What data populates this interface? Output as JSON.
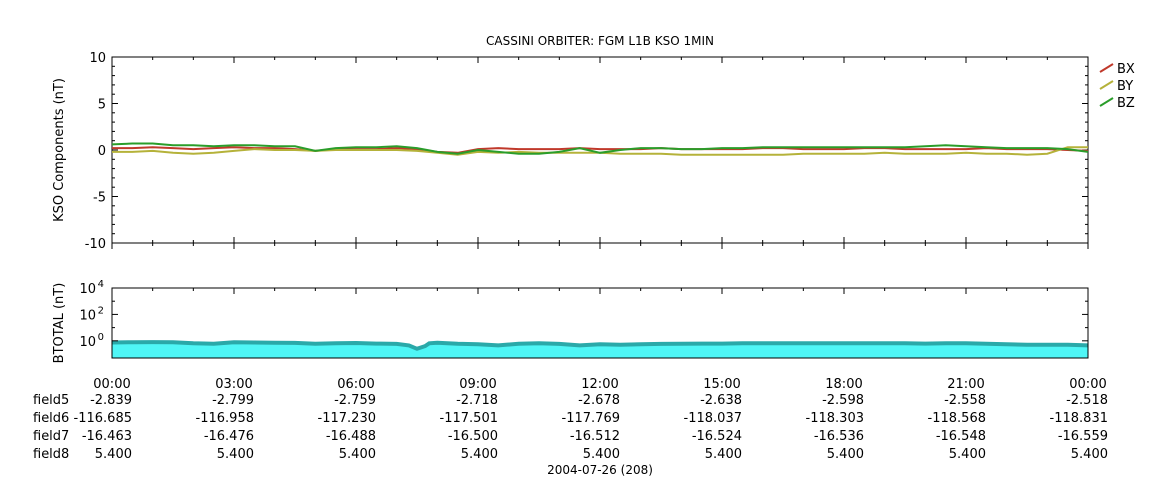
{
  "title": "CASSINI ORBITER: FGM L1B KSO 1MIN",
  "colors": {
    "bx": "#c0392b",
    "by": "#b5b23a",
    "bz": "#2a9d2a",
    "btotal_fill": "#4ff6f6",
    "btotal_line": "#2aa9a9",
    "axis": "#000000"
  },
  "chart_data": [
    {
      "type": "line",
      "ylabel": "KSO Components (nT)",
      "ylim": [
        -10,
        10
      ],
      "yticks": [
        {
          "value": 10,
          "label": "10"
        },
        {
          "value": 5,
          "label": "5"
        },
        {
          "value": 0,
          "label": "0"
        },
        {
          "value": -5,
          "label": "-5"
        },
        {
          "value": -10,
          "label": "-10"
        }
      ],
      "x_hours": [
        0,
        0.5,
        1,
        1.5,
        2,
        2.5,
        3,
        3.5,
        4,
        4.5,
        5,
        5.5,
        6,
        6.5,
        7,
        7.5,
        8,
        8.5,
        9,
        9.5,
        10,
        10.5,
        11,
        11.5,
        12,
        12.5,
        13,
        13.5,
        14,
        14.5,
        15,
        15.5,
        16,
        16.5,
        17,
        17.5,
        18,
        18.5,
        19,
        19.5,
        20,
        20.5,
        21,
        21.5,
        22,
        22.5,
        23,
        23.5,
        24
      ],
      "series": [
        {
          "name": "BX",
          "color_key": "bx",
          "values": [
            0.2,
            0.2,
            0.3,
            0.2,
            0.1,
            0.2,
            0.3,
            0.2,
            0.2,
            0.1,
            -0.1,
            0.1,
            0.1,
            0.1,
            0.2,
            0.1,
            -0.2,
            -0.3,
            0.1,
            0.2,
            0.1,
            0.1,
            0.1,
            0.2,
            0.1,
            0.1,
            0.1,
            0.2,
            0.1,
            0.1,
            0.1,
            0.1,
            0.2,
            0.2,
            0.1,
            0.1,
            0.1,
            0.2,
            0.2,
            0.1,
            0.1,
            0.1,
            0.1,
            0.2,
            0.1,
            0.1,
            0.1,
            0.0,
            -0.1
          ]
        },
        {
          "name": "BY",
          "color_key": "by",
          "values": [
            -0.2,
            -0.2,
            -0.1,
            -0.3,
            -0.4,
            -0.3,
            -0.1,
            0.1,
            0.0,
            0.0,
            -0.1,
            0.0,
            0.0,
            0.0,
            0.0,
            -0.1,
            -0.3,
            -0.5,
            -0.2,
            -0.3,
            -0.2,
            -0.3,
            -0.3,
            -0.3,
            -0.3,
            -0.4,
            -0.4,
            -0.4,
            -0.5,
            -0.5,
            -0.5,
            -0.5,
            -0.5,
            -0.5,
            -0.4,
            -0.4,
            -0.4,
            -0.4,
            -0.3,
            -0.4,
            -0.4,
            -0.4,
            -0.3,
            -0.4,
            -0.4,
            -0.5,
            -0.4,
            0.3,
            0.3
          ]
        },
        {
          "name": "BZ",
          "color_key": "bz",
          "values": [
            0.6,
            0.7,
            0.7,
            0.5,
            0.5,
            0.4,
            0.5,
            0.5,
            0.4,
            0.4,
            -0.1,
            0.2,
            0.3,
            0.3,
            0.4,
            0.2,
            -0.2,
            -0.4,
            0.0,
            -0.2,
            -0.4,
            -0.4,
            -0.2,
            0.2,
            -0.3,
            0.0,
            0.2,
            0.2,
            0.1,
            0.1,
            0.2,
            0.2,
            0.3,
            0.3,
            0.3,
            0.3,
            0.3,
            0.3,
            0.3,
            0.3,
            0.4,
            0.5,
            0.4,
            0.3,
            0.2,
            0.2,
            0.2,
            0.1,
            -0.2
          ]
        }
      ],
      "legend": [
        "BX",
        "BY",
        "BZ"
      ],
      "legend_position": "right"
    },
    {
      "type": "area",
      "ylabel": "BTOTAL (nT)",
      "yscale": "log",
      "ylim": [
        0.05,
        10000
      ],
      "yticks": [
        {
          "value": 1,
          "base": "10",
          "exp": "0"
        },
        {
          "value": 100,
          "base": "10",
          "exp": "2"
        },
        {
          "value": 10000,
          "base": "10",
          "exp": "4"
        }
      ],
      "x_hours": [
        0,
        0.5,
        1,
        1.5,
        2,
        2.5,
        3,
        3.5,
        4,
        4.5,
        5,
        5.5,
        6,
        6.5,
        7,
        7.3,
        7.5,
        7.7,
        7.8,
        8,
        8.5,
        9,
        9.5,
        10,
        10.5,
        11,
        11.5,
        12,
        12.5,
        13,
        13.5,
        14,
        14.5,
        15,
        15.5,
        16,
        16.5,
        17,
        17.5,
        18,
        18.5,
        19,
        19.5,
        20,
        20.5,
        21,
        21.5,
        22,
        22.5,
        23,
        23.5,
        24
      ],
      "series": [
        {
          "name": "BTOTAL",
          "color_key": "btotal_line",
          "values": [
            0.75,
            0.78,
            0.8,
            0.78,
            0.65,
            0.6,
            0.78,
            0.75,
            0.72,
            0.7,
            0.6,
            0.65,
            0.68,
            0.62,
            0.58,
            0.45,
            0.25,
            0.4,
            0.65,
            0.72,
            0.6,
            0.55,
            0.45,
            0.6,
            0.65,
            0.58,
            0.45,
            0.55,
            0.5,
            0.55,
            0.58,
            0.6,
            0.62,
            0.62,
            0.65,
            0.65,
            0.65,
            0.65,
            0.65,
            0.65,
            0.65,
            0.65,
            0.65,
            0.62,
            0.65,
            0.65,
            0.6,
            0.55,
            0.5,
            0.5,
            0.5,
            0.45
          ]
        }
      ]
    }
  ],
  "xaxis": {
    "ticks": [
      {
        "hour": 0,
        "label": "00:00"
      },
      {
        "hour": 3,
        "label": "03:00"
      },
      {
        "hour": 6,
        "label": "06:00"
      },
      {
        "hour": 9,
        "label": "09:00"
      },
      {
        "hour": 12,
        "label": "12:00"
      },
      {
        "hour": 15,
        "label": "15:00"
      },
      {
        "hour": 18,
        "label": "18:00"
      },
      {
        "hour": 21,
        "label": "21:00"
      },
      {
        "hour": 24,
        "label": "00:00"
      }
    ],
    "minor_step_hours": 1,
    "date_label": "2004-07-26 (208)"
  },
  "fields": [
    {
      "name": "field5",
      "values": [
        "-2.839",
        "-2.799",
        "-2.759",
        "-2.718",
        "-2.678",
        "-2.638",
        "-2.598",
        "-2.558",
        "-2.518"
      ]
    },
    {
      "name": "field6",
      "values": [
        "-116.685",
        "-116.958",
        "-117.230",
        "-117.501",
        "-117.769",
        "-118.037",
        "-118.303",
        "-118.568",
        "-118.831"
      ]
    },
    {
      "name": "field7",
      "values": [
        "-16.463",
        "-16.476",
        "-16.488",
        "-16.500",
        "-16.512",
        "-16.524",
        "-16.536",
        "-16.548",
        "-16.559"
      ]
    },
    {
      "name": "field8",
      "values": [
        "5.400",
        "5.400",
        "5.400",
        "5.400",
        "5.400",
        "5.400",
        "5.400",
        "5.400",
        "5.400"
      ]
    }
  ]
}
